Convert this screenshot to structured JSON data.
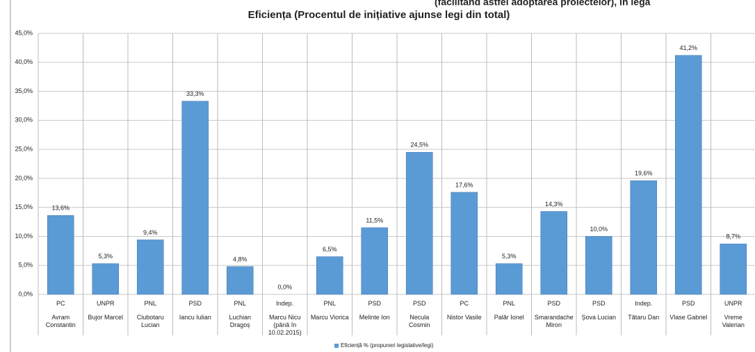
{
  "header_fragment": "(facilitând astfel adoptarea proiectelor), în legă",
  "chart_data": {
    "type": "bar",
    "title": "Eficiența (Procentul de inițiative ajunse legi din total)",
    "categories": [
      "Avram Constantin",
      "Bujor Marcel",
      "Ciubotaru Lucian",
      "Iancu Iulian",
      "Luchian Dragoș",
      "Marcu Nicu (până în 10.02.2015)",
      "Marcu Viorica",
      "Melinte Ion",
      "Necula Cosmin",
      "Nistor Vasile",
      "Palăr Ionel",
      "Smarandache Miron",
      "Șova Lucian",
      "Tătaru Dan",
      "Vlase Gabriel",
      "Vreme Valerian"
    ],
    "parties": [
      "PC",
      "UNPR",
      "PNL",
      "PSD",
      "PNL",
      "Indep.",
      "PNL",
      "PSD",
      "PSD",
      "PC",
      "PNL",
      "PSD",
      "PSD",
      "Indep.",
      "PSD",
      "UNPR"
    ],
    "series": [
      {
        "name": "Eficiență % (propuneri legislative/legi)",
        "color": "#5b9bd5",
        "values": [
          13.6,
          5.3,
          9.4,
          33.3,
          4.8,
          0.0,
          6.5,
          11.5,
          24.5,
          17.6,
          5.3,
          14.3,
          10.0,
          19.6,
          41.2,
          8.7
        ],
        "value_labels": [
          "13,6%",
          "5,3%",
          "9,4%",
          "33,3%",
          "4,8%",
          "0,0%",
          "6,5%",
          "11,5%",
          "24,5%",
          "17,6%",
          "5,3%",
          "14,3%",
          "10,0%",
          "19,6%",
          "41,2%",
          "8,7%"
        ]
      }
    ],
    "ylim": [
      0,
      45
    ],
    "yticks": [
      {
        "value": 0,
        "label": "0,0%"
      },
      {
        "value": 5,
        "label": "5,0%"
      },
      {
        "value": 10,
        "label": "10,0%"
      },
      {
        "value": 15,
        "label": "15,0%"
      },
      {
        "value": 20,
        "label": "20,0%"
      },
      {
        "value": 25,
        "label": "25,0%"
      },
      {
        "value": 30,
        "label": "30,0%"
      },
      {
        "value": 35,
        "label": "35,0%"
      },
      {
        "value": 40,
        "label": "40,0%"
      },
      {
        "value": 45,
        "label": {
          "value": 45,
          "label": "45,0%"
        }
      }
    ],
    "grid": true,
    "legend": "bottom"
  }
}
